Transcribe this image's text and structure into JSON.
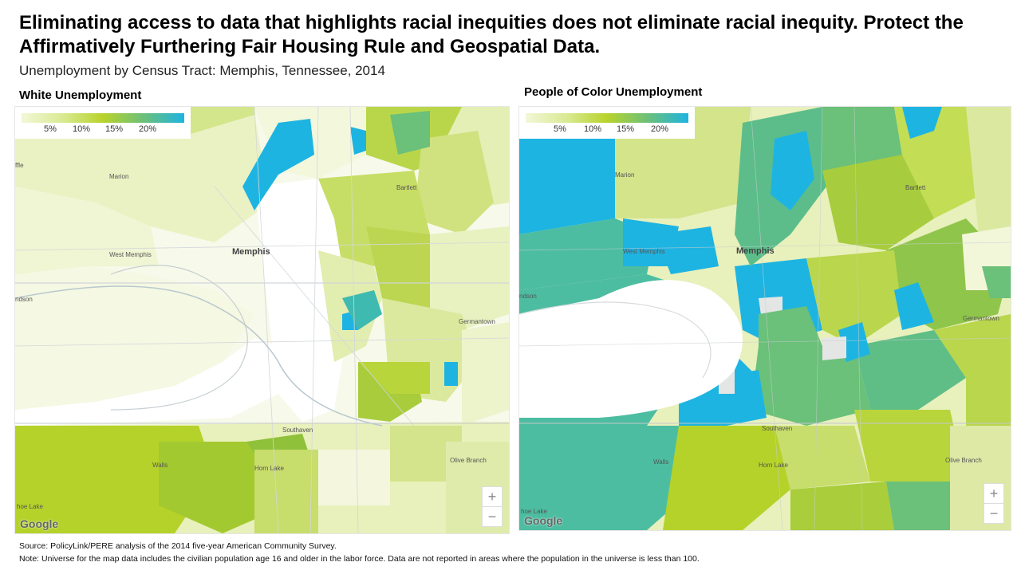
{
  "headline": {
    "bold": "Eliminating access to data that highlights racial inequities does not eliminate racial inequity",
    "rest": ". Protect the Affirmatively Furthering Fair Housing Rule and Geospatial Data."
  },
  "subtitle": "Unemployment  by Census Tract: Memphis, Tennessee, 2014",
  "maps": {
    "left": {
      "title": "White Unemployment",
      "legend": {
        "ticks": [
          "5%",
          "10%",
          "15%",
          "20%"
        ]
      },
      "places": {
        "memphis": "Memphis",
        "west_memphis": "West Memphis",
        "marion": "Marion",
        "bartlett": "Bartlett",
        "germantown": "Germantown",
        "southaven": "Southaven",
        "horn_lake": "Horn Lake",
        "olive_branch": "Olive Branch",
        "walls": "Walls",
        "hoe_lake": "hoe Lake",
        "edge_top": "ffle",
        "edge_mid": "ndson"
      },
      "zoom": {
        "in": "+",
        "out": "−"
      },
      "attribution": "Google"
    },
    "right": {
      "title": "People of Color Unemployment",
      "legend": {
        "ticks": [
          "5%",
          "10%",
          "15%",
          "20%"
        ]
      },
      "places": {
        "memphis": "Memphis",
        "west_memphis": "West Memphis",
        "marion": "Marion",
        "bartlett": "Bartlett",
        "germantown": "Germantown",
        "southaven": "Southaven",
        "horn_lake": "Horn Lake",
        "olive_branch": "Olive Branch",
        "walls": "Walls",
        "hoe_lake": "hoe Lake",
        "edge_mid": "ndson"
      },
      "zoom": {
        "in": "+",
        "out": "−"
      },
      "attribution": "Google"
    }
  },
  "legend_colors": [
    "#f3f7d8",
    "#d9ea93",
    "#b8d32c",
    "#6cc07a",
    "#1eb4e2"
  ],
  "footer": {
    "source": "Source: PolicyLink/PERE analysis of the 2014 five-year American Community Survey.",
    "note": "Note: Universe for the map data includes the civilian population age 16 and older in the labor force. Data are not reported in areas where the population in the universe is less than 100."
  }
}
